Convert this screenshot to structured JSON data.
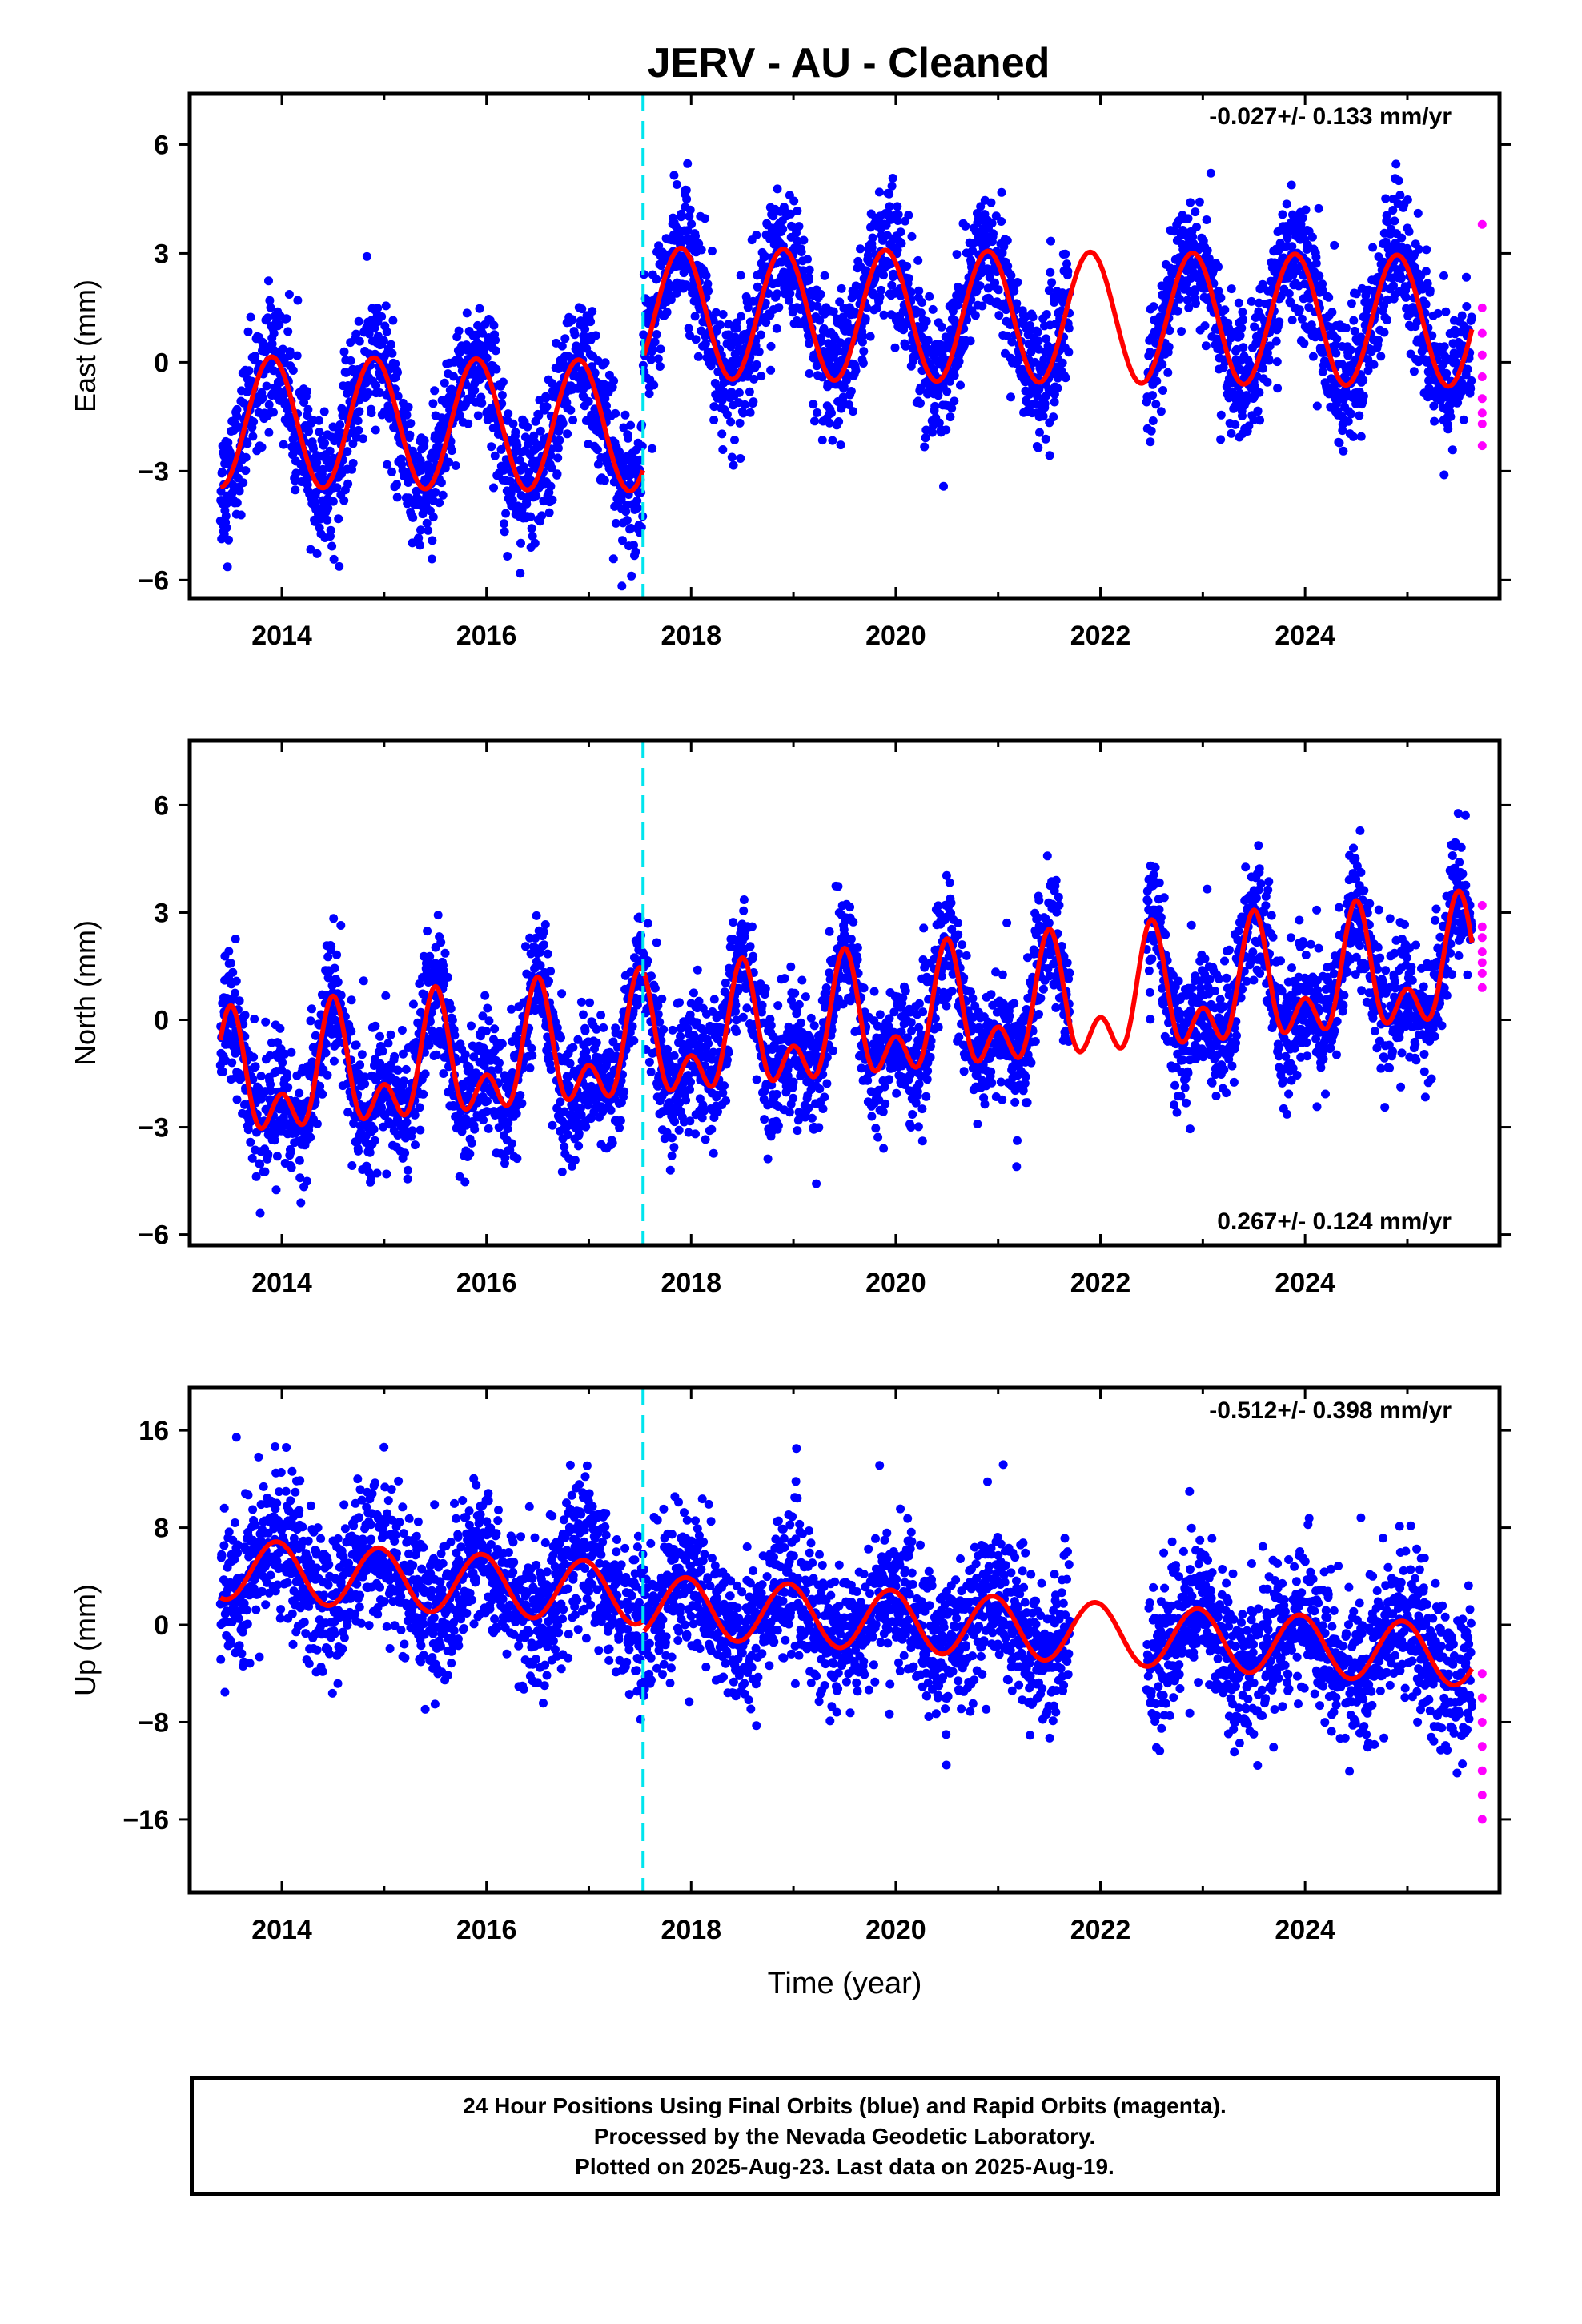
{
  "title": "JERV  - AU - Cleaned",
  "footer": {
    "line1": "24 Hour Positions Using Final Orbits (blue) and Rapid Orbits (magenta).",
    "line2": "Processed by the Nevada Geodetic Laboratory.",
    "line3": "Plotted on 2025-Aug-23. Last data on 2025-Aug-19."
  },
  "colors": {
    "final_points": "#0000ff",
    "rapid_points": "#ff00ff",
    "model": "#ff0000",
    "offset_line": "#00e5ee",
    "frame": "#000000"
  },
  "chart_data": [
    {
      "type": "scatter",
      "component": "East",
      "ylabel": "East (mm)",
      "xlabel": "",
      "rate_text": "-0.027+/- 0.133 mm/yr",
      "rate_position": "top-right",
      "xlim": [
        2013.1,
        2025.9
      ],
      "ylim": [
        -6.5,
        7.4
      ],
      "xticks": [
        2014,
        2016,
        2018,
        2020,
        2022,
        2024
      ],
      "yticks": [
        -6,
        -3,
        0,
        3,
        6
      ],
      "ytick_labels": [
        "−6",
        "−3",
        "0",
        "3",
        "6"
      ],
      "offset_epoch": 2017.53,
      "data_start": 2013.4,
      "data_end": 2025.63,
      "gaps": [
        [
          2021.7,
          2022.45
        ]
      ],
      "model": {
        "mean_before": -1.8,
        "mean_after": 1.3,
        "annual_amp": 1.8,
        "annual_phase": 2013.9,
        "semiannual_amp": 0.0,
        "noise_sd": 0.9,
        "trend_mm_per_yr": -0.027
      },
      "rapid_values": [
        3.8,
        1.5,
        0.8,
        0.2,
        -0.4,
        -1.0,
        -1.4,
        -1.7,
        -2.3
      ]
    },
    {
      "type": "scatter",
      "component": "North",
      "ylabel": "North (mm)",
      "xlabel": "",
      "rate_text": "0.267+/- 0.124 mm/yr",
      "rate_position": "bottom-right",
      "xlim": [
        2013.1,
        2025.9
      ],
      "ylim": [
        -6.3,
        7.8
      ],
      "xticks": [
        2014,
        2016,
        2018,
        2020,
        2022,
        2024
      ],
      "yticks": [
        -6,
        -3,
        0,
        3,
        6
      ],
      "ytick_labels": [
        "−6",
        "−3",
        "0",
        "3",
        "6"
      ],
      "offset_epoch": 2017.53,
      "data_start": 2013.4,
      "data_end": 2025.63,
      "gaps": [
        [
          2021.7,
          2022.45
        ]
      ],
      "model": {
        "mean_before": -0.3,
        "mean_after": -0.3,
        "annual_amp": 1.3,
        "annual_phase": 2013.5,
        "semiannual_amp": 1.0,
        "noise_sd": 0.9,
        "trend_mm_per_yr": 0.267
      },
      "rapid_values": [
        3.2,
        2.6,
        2.3,
        1.9,
        1.6,
        1.3,
        0.9
      ]
    },
    {
      "type": "scatter",
      "component": "Up",
      "ylabel": "Up (mm)",
      "xlabel": "Time (year)",
      "rate_text": "-0.512+/- 0.398 mm/yr",
      "rate_position": "top-right",
      "xlim": [
        2013.1,
        2025.9
      ],
      "ylim": [
        -22,
        19.5
      ],
      "xticks": [
        2014,
        2016,
        2018,
        2020,
        2022,
        2024
      ],
      "yticks": [
        -16,
        -8,
        0,
        8,
        16
      ],
      "ytick_labels": [
        "−16",
        "−8",
        "0",
        "8",
        "16"
      ],
      "offset_epoch": 2017.53,
      "data_start": 2013.4,
      "data_end": 2025.63,
      "gaps": [
        [
          2021.7,
          2022.45
        ]
      ],
      "model": {
        "mean_before": 1.5,
        "mean_after": 0.6,
        "annual_amp": 2.5,
        "annual_phase": 2013.95,
        "semiannual_amp": 0.0,
        "noise_sd": 3.0,
        "trend_mm_per_yr": -0.512
      },
      "rapid_values": [
        -4.0,
        -6.0,
        -8.0,
        -10.0,
        -12.0,
        -14.0,
        -16.0
      ]
    }
  ]
}
